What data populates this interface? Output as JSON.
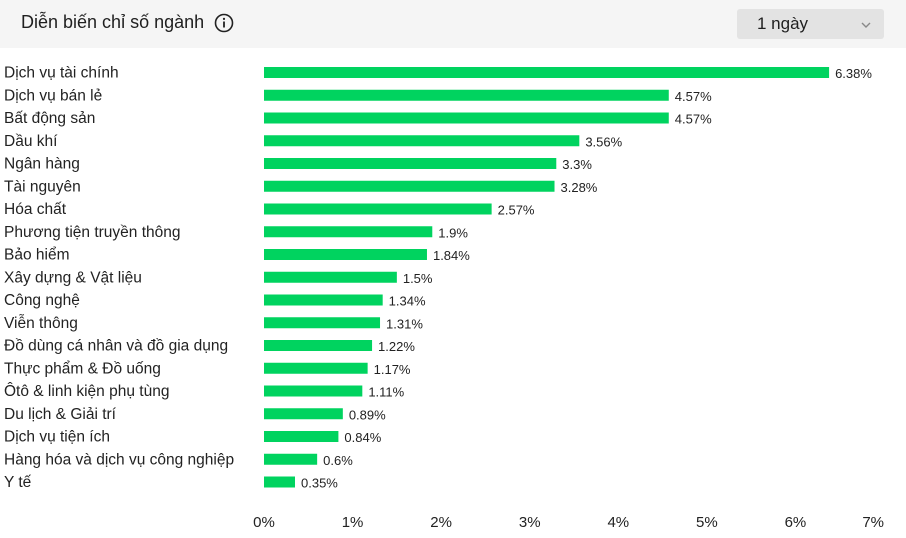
{
  "header": {
    "title": "Diễn biến chỉ số ngành",
    "period": "1 ngày"
  },
  "colors": {
    "bar": "#00d35f",
    "text": "#222222",
    "header_bg": "#f5f5f5",
    "select_bg": "#e3e3e3"
  },
  "icons": {
    "info": "info-icon",
    "dropdown": "chevron-down-icon"
  },
  "chart_data": {
    "type": "bar",
    "orientation": "horizontal",
    "categories": [
      "Dịch vụ tài chính",
      "Dịch vụ bán lẻ",
      "Bất động sản",
      "Dầu khí",
      "Ngân hàng",
      "Tài nguyên",
      "Hóa chất",
      "Phương tiện truyền thông",
      "Bảo hiểm",
      "Xây dựng & Vật liệu",
      "Công nghệ",
      "Viễn thông",
      "Đồ dùng cá nhân và đồ gia dụng",
      "Thực phẩm & Đồ uống",
      "Ôtô & linh kiện phụ tùng",
      "Du lịch & Giải trí",
      "Dịch vụ tiện ích",
      "Hàng hóa và dịch vụ công nghiệp",
      "Y tế"
    ],
    "values": [
      6.38,
      4.57,
      4.57,
      3.56,
      3.3,
      3.28,
      2.57,
      1.9,
      1.84,
      1.5,
      1.34,
      1.31,
      1.22,
      1.17,
      1.11,
      0.89,
      0.84,
      0.6,
      0.35
    ],
    "value_labels": [
      "6.38%",
      "4.57%",
      "4.57%",
      "3.56%",
      "3.3%",
      "3.28%",
      "2.57%",
      "1.9%",
      "1.84%",
      "1.5%",
      "1.34%",
      "1.31%",
      "1.22%",
      "1.17%",
      "1.11%",
      "0.89%",
      "0.84%",
      "0.6%",
      "0.35%"
    ],
    "xlim": [
      0,
      7
    ],
    "xticks": [
      "0%",
      "1%",
      "2%",
      "3%",
      "4%",
      "5%",
      "6%",
      "7%"
    ],
    "grid": false,
    "legend": "none"
  }
}
